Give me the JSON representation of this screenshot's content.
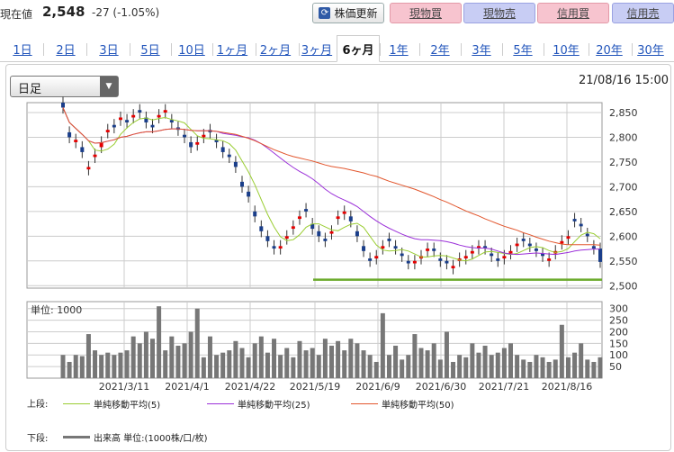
{
  "header": {
    "price_label": "現在値",
    "price_value": "2,548",
    "price_change": "-27 (-1.05%)",
    "refresh_label": "株価更新",
    "buttons": [
      {
        "label": "現物買",
        "kind": "buy"
      },
      {
        "label": "現物売",
        "kind": "sell"
      },
      {
        "label": "信用買",
        "kind": "buy"
      },
      {
        "label": "信用売",
        "kind": "sell"
      }
    ]
  },
  "tabs": [
    "1日",
    "2日",
    "3日",
    "5日",
    "10日",
    "1ヶ月",
    "2ヶ月",
    "3ヶ月",
    "6ヶ月",
    "1年",
    "2年",
    "3年",
    "5年",
    "10年",
    "20年",
    "30年"
  ],
  "active_tab": "6ヶ月",
  "controls": {
    "period_select": "日足",
    "timestamp": "21/08/16 15:00"
  },
  "colors": {
    "up": "#e60000",
    "down": "#1a3e8a",
    "ma5": "#9acd32",
    "ma25": "#9b30d9",
    "ma50": "#e2562d",
    "support": "#6aaa2a",
    "volume": "#777777"
  },
  "chart_data": [
    {
      "type": "candlestick",
      "title": "",
      "x_labels": [
        "2021/3/11",
        "2021/4/1",
        "2021/4/22",
        "2021/5/19",
        "2021/6/9",
        "2021/6/30",
        "2021/7/21",
        "2021/8/16"
      ],
      "y_ticks": [
        "2,850",
        "2,800",
        "2,750",
        "2,700",
        "2,650",
        "2,600",
        "2,550",
        "2,500"
      ],
      "ylim": [
        2495,
        2870
      ],
      "support_level": 2512,
      "close": [
        2860,
        2800,
        2795,
        2770,
        2740,
        2765,
        2790,
        2815,
        2820,
        2840,
        2830,
        2845,
        2850,
        2830,
        2820,
        2845,
        2855,
        2830,
        2815,
        2800,
        2780,
        2790,
        2805,
        2810,
        2790,
        2770,
        2760,
        2740,
        2700,
        2680,
        2640,
        2610,
        2590,
        2575,
        2580,
        2600,
        2620,
        2640,
        2650,
        2615,
        2600,
        2590,
        2610,
        2640,
        2650,
        2630,
        2600,
        2570,
        2550,
        2560,
        2580,
        2590,
        2575,
        2560,
        2545,
        2550,
        2560,
        2575,
        2570,
        2550,
        2545,
        2540,
        2555,
        2560,
        2570,
        2580,
        2575,
        2560,
        2550,
        2560,
        2570,
        2585,
        2590,
        2580,
        2570,
        2560,
        2555,
        2570,
        2590,
        2600,
        2630,
        2620,
        2600,
        2575,
        2548
      ],
      "open": [
        2870,
        2810,
        2790,
        2780,
        2735,
        2760,
        2780,
        2810,
        2825,
        2835,
        2835,
        2840,
        2855,
        2840,
        2825,
        2840,
        2850,
        2835,
        2820,
        2805,
        2790,
        2785,
        2800,
        2815,
        2795,
        2780,
        2765,
        2750,
        2710,
        2690,
        2650,
        2620,
        2600,
        2580,
        2575,
        2595,
        2615,
        2635,
        2655,
        2625,
        2610,
        2595,
        2605,
        2635,
        2645,
        2640,
        2610,
        2580,
        2555,
        2555,
        2575,
        2595,
        2580,
        2565,
        2550,
        2545,
        2555,
        2570,
        2575,
        2555,
        2550,
        2535,
        2550,
        2555,
        2565,
        2575,
        2580,
        2565,
        2555,
        2555,
        2565,
        2580,
        2595,
        2585,
        2575,
        2565,
        2550,
        2565,
        2585,
        2595,
        2635,
        2625,
        2605,
        2580,
        2575
      ],
      "series": [
        {
          "name": "単純移動平均(5)",
          "values": []
        },
        {
          "name": "単純移動平均(25)",
          "values": []
        },
        {
          "name": "単純移動平均(50)",
          "values": []
        }
      ]
    },
    {
      "type": "bar",
      "title": "",
      "unit_label": "単位: 1000",
      "y_ticks": [
        "300",
        "250",
        "200",
        "150",
        "100",
        "50"
      ],
      "ylim": [
        0,
        330
      ],
      "values": [
        100,
        70,
        100,
        95,
        190,
        120,
        100,
        110,
        100,
        110,
        120,
        180,
        150,
        200,
        170,
        310,
        120,
        180,
        140,
        150,
        200,
        300,
        90,
        180,
        100,
        110,
        120,
        160,
        130,
        90,
        150,
        180,
        110,
        170,
        100,
        130,
        90,
        160,
        120,
        130,
        100,
        170,
        140,
        160,
        120,
        170,
        150,
        120,
        100,
        70,
        280,
        100,
        140,
        80,
        100,
        190,
        130,
        120,
        150,
        80,
        200,
        70,
        100,
        90,
        150,
        110,
        140,
        100,
        110,
        130,
        150,
        100,
        80,
        70,
        100,
        90,
        70,
        80,
        230,
        90,
        110,
        150,
        80,
        70,
        90
      ]
    }
  ],
  "legend": {
    "upper_label": "上段:",
    "lower_label": "下段:",
    "volume_label": "出来高 単位:(1000株/口/枚)"
  }
}
